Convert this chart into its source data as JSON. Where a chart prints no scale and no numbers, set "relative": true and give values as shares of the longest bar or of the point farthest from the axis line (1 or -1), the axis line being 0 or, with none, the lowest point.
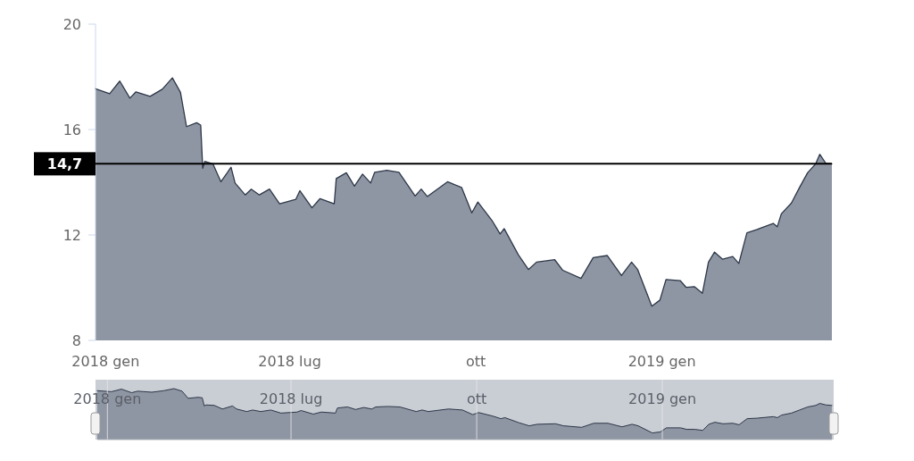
{
  "chart_data": [
    {
      "type": "area",
      "x": [
        "2018-03-27",
        "2018-04-03",
        "2018-04-08",
        "2018-04-13",
        "2018-04-16",
        "2018-04-23",
        "2018-04-29",
        "2018-05-04",
        "2018-05-08",
        "2018-05-11",
        "2018-05-16",
        "2018-05-18",
        "2018-05-19",
        "2018-05-20",
        "2018-05-24",
        "2018-05-28",
        "2018-06-02",
        "2018-06-04",
        "2018-06-09",
        "2018-06-12",
        "2018-06-16",
        "2018-06-21",
        "2018-06-26",
        "2018-07-04",
        "2018-07-06",
        "2018-07-12",
        "2018-07-16",
        "2018-07-23",
        "2018-07-24",
        "2018-07-29",
        "2018-08-02",
        "2018-08-06",
        "2018-08-10",
        "2018-08-12",
        "2018-08-18",
        "2018-08-24",
        "2018-09-01",
        "2018-09-04",
        "2018-09-07",
        "2018-09-17",
        "2018-09-24",
        "2018-09-29",
        "2018-10-02",
        "2018-10-09",
        "2018-10-13",
        "2018-10-15",
        "2018-10-22",
        "2018-10-27",
        "2018-10-31",
        "2018-11-09",
        "2018-11-13",
        "2018-11-22",
        "2018-11-28",
        "2018-12-05",
        "2018-12-12",
        "2018-12-17",
        "2018-12-20",
        "2018-12-27",
        "2018-12-31",
        "2019-01-03",
        "2019-01-10",
        "2019-01-13",
        "2019-01-17",
        "2019-01-21",
        "2019-01-24",
        "2019-01-27",
        "2019-01-31",
        "2019-02-05",
        "2019-02-08",
        "2019-02-12",
        "2019-02-17",
        "2019-02-25",
        "2019-02-27",
        "2019-03-01",
        "2019-03-06",
        "2019-03-10",
        "2019-03-14",
        "2019-03-18",
        "2019-03-20",
        "2019-03-23",
        "2019-03-26"
      ],
      "series": [
        {
          "color": "#8f96a3",
          "values": [
            17.55,
            17.36,
            17.84,
            17.19,
            17.43,
            17.26,
            17.53,
            17.96,
            17.41,
            16.11,
            16.26,
            16.17,
            14.53,
            14.79,
            14.7,
            14.02,
            14.57,
            13.97,
            13.52,
            13.74,
            13.52,
            13.74,
            13.18,
            13.35,
            13.68,
            13.03,
            13.38,
            13.18,
            14.14,
            14.36,
            13.85,
            14.31,
            13.97,
            14.38,
            14.45,
            14.38,
            13.48,
            13.74,
            13.46,
            14.02,
            13.8,
            12.84,
            13.25,
            12.55,
            12.04,
            12.24,
            11.25,
            10.69,
            10.97,
            11.06,
            10.66,
            10.35,
            11.14,
            11.22,
            10.46,
            10.97,
            10.69,
            9.3,
            9.53,
            10.31,
            10.27,
            10.01,
            10.04,
            9.79,
            10.97,
            11.35,
            11.08,
            11.18,
            10.92,
            12.08,
            12.21,
            12.44,
            12.31,
            12.8,
            13.21,
            13.8,
            14.36,
            14.7,
            15.06,
            14.72,
            14.7
          ]
        }
      ],
      "xlim": [
        "2018-03-27",
        "2019-03-26"
      ],
      "xticks": [
        {
          "value": "2018-04-01",
          "label": "2018 gen"
        },
        {
          "value": "2018-07-01",
          "label": "2018 lug"
        },
        {
          "value": "2018-10-01",
          "label": "ott"
        },
        {
          "value": "2019-01-01",
          "label": "2019 gen"
        }
      ],
      "ylim": [
        8,
        20
      ],
      "yticks": [
        8,
        12,
        16,
        20
      ],
      "ref_lines": [
        {
          "axis": "y",
          "value": 14.7,
          "label": "14,7",
          "color": "#000000"
        }
      ],
      "grid": false
    },
    {
      "type": "area",
      "x": [
        "2018-03-27",
        "2018-04-03",
        "2018-04-08",
        "2018-04-13",
        "2018-04-16",
        "2018-04-23",
        "2018-04-29",
        "2018-05-04",
        "2018-05-08",
        "2018-05-11",
        "2018-05-16",
        "2018-05-18",
        "2018-05-19",
        "2018-05-20",
        "2018-05-24",
        "2018-05-28",
        "2018-06-02",
        "2018-06-04",
        "2018-06-09",
        "2018-06-12",
        "2018-06-16",
        "2018-06-21",
        "2018-06-26",
        "2018-07-04",
        "2018-07-06",
        "2018-07-12",
        "2018-07-16",
        "2018-07-23",
        "2018-07-24",
        "2018-07-29",
        "2018-08-02",
        "2018-08-06",
        "2018-08-10",
        "2018-08-12",
        "2018-08-18",
        "2018-08-24",
        "2018-09-01",
        "2018-09-04",
        "2018-09-07",
        "2018-09-17",
        "2018-09-24",
        "2018-09-29",
        "2018-10-02",
        "2018-10-09",
        "2018-10-13",
        "2018-10-15",
        "2018-10-22",
        "2018-10-27",
        "2018-10-31",
        "2018-11-09",
        "2018-11-13",
        "2018-11-22",
        "2018-11-28",
        "2018-12-05",
        "2018-12-12",
        "2018-12-17",
        "2018-12-20",
        "2018-12-27",
        "2018-12-31",
        "2019-01-03",
        "2019-01-10",
        "2019-01-13",
        "2019-01-17",
        "2019-01-21",
        "2019-01-24",
        "2019-01-27",
        "2019-01-31",
        "2019-02-05",
        "2019-02-08",
        "2019-02-12",
        "2019-02-17",
        "2019-02-25",
        "2019-02-27",
        "2019-03-01",
        "2019-03-06",
        "2019-03-10",
        "2019-03-14",
        "2019-03-18",
        "2019-03-20",
        "2019-03-23",
        "2019-03-26"
      ],
      "series": [
        {
          "color": "#8f96a3",
          "values": [
            0.96,
            0.94,
            0.99,
            0.92,
            0.95,
            0.93,
            0.96,
            1,
            0.95,
            0.81,
            0.83,
            0.82,
            0.66,
            0.68,
            0.67,
            0.6,
            0.66,
            0.6,
            0.55,
            0.58,
            0.55,
            0.58,
            0.52,
            0.54,
            0.57,
            0.5,
            0.54,
            0.52,
            0.62,
            0.64,
            0.59,
            0.63,
            0.6,
            0.64,
            0.65,
            0.64,
            0.55,
            0.58,
            0.55,
            0.6,
            0.58,
            0.49,
            0.53,
            0.46,
            0.41,
            0.43,
            0.33,
            0.27,
            0.3,
            0.31,
            0.27,
            0.24,
            0.32,
            0.32,
            0.25,
            0.3,
            0.27,
            0.13,
            0.15,
            0.23,
            0.23,
            0.2,
            0.2,
            0.18,
            0.3,
            0.34,
            0.31,
            0.32,
            0.29,
            0.41,
            0.42,
            0.45,
            0.43,
            0.48,
            0.52,
            0.58,
            0.64,
            0.67,
            0.71,
            0.68,
            0.67
          ]
        }
      ],
      "xlim": [
        "2018-03-27",
        "2019-03-26"
      ],
      "xticks": [
        {
          "value": "2018-04-01",
          "label": "2018 gen"
        },
        {
          "value": "2018-07-01",
          "label": "2018 lug"
        },
        {
          "value": "2018-10-01",
          "label": "ott"
        },
        {
          "value": "2019-01-01",
          "label": "2019 gen"
        }
      ],
      "relative": true,
      "grid": "x",
      "tick_labels": "x"
    }
  ]
}
